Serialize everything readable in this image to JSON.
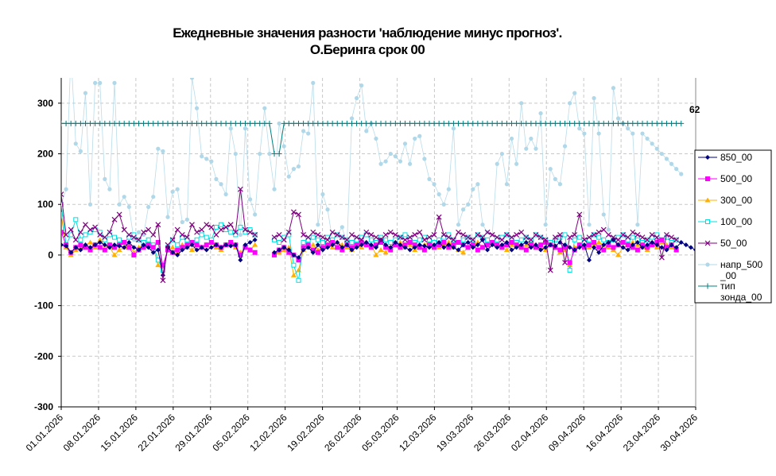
{
  "chart_data": {
    "type": "line",
    "title": "Ежедневные значения разности 'наблюдение минус прогноз'.",
    "subtitle": "О.Беринга     срок 00",
    "ylim": [
      -300,
      350
    ],
    "yticks": [
      -300,
      -200,
      -100,
      0,
      100,
      200,
      300
    ],
    "grid": true,
    "legend_position": "right",
    "x_tick_labels": [
      "01.01.2026",
      "08.01.2026",
      "15.01.2026",
      "22.01.2026",
      "29.01.2026",
      "05.02.2026",
      "12.02.2026",
      "19.02.2026",
      "26.02.2026",
      "05.03.2026",
      "12.03.2026",
      "19.03.2026",
      "26.03.2026",
      "02.04.2026",
      "09.04.2026",
      "16.04.2026",
      "23.04.2026",
      "30.04.2026"
    ],
    "annotation": "62",
    "series": [
      {
        "name": "850_00",
        "color": "#000080",
        "marker": "diamond",
        "values": [
          20,
          18,
          5,
          15,
          10,
          20,
          15,
          20,
          25,
          20,
          15,
          20,
          18,
          15,
          25,
          15,
          10,
          20,
          15,
          5,
          10,
          -40,
          15,
          5,
          0,
          10,
          15,
          20,
          10,
          15,
          10,
          15,
          20,
          15,
          20,
          18,
          20,
          -10,
          20,
          25,
          30,
          null,
          null,
          null,
          5,
          10,
          15,
          10,
          0,
          -5,
          10,
          15,
          5,
          20,
          10,
          15,
          20,
          25,
          15,
          20,
          10,
          15,
          20,
          25,
          20,
          15,
          30,
          20,
          15,
          25,
          20,
          15,
          10,
          15,
          20,
          18,
          15,
          20,
          25,
          15,
          20,
          15,
          10,
          20,
          25,
          15,
          20,
          30,
          10,
          20,
          15,
          20,
          25,
          10,
          15,
          20,
          25,
          15,
          20,
          10,
          15,
          20,
          18,
          25,
          20,
          15,
          10,
          15,
          20,
          -10,
          15,
          5,
          20,
          25,
          30,
          20,
          15,
          10,
          20,
          25,
          15,
          20,
          25,
          20,
          15,
          10,
          20,
          15,
          25,
          20,
          15,
          10
        ]
      },
      {
        "name": "500_00",
        "color": "#ff00ff",
        "marker": "square",
        "values": [
          45,
          20,
          5,
          15,
          20,
          15,
          10,
          20,
          15,
          10,
          20,
          15,
          20,
          25,
          15,
          0,
          10,
          15,
          20,
          15,
          25,
          -20,
          10,
          5,
          10,
          15,
          20,
          25,
          20,
          15,
          20,
          25,
          20,
          15,
          20,
          25,
          20,
          0,
          15,
          10,
          5,
          null,
          null,
          null,
          0,
          10,
          15,
          5,
          0,
          -10,
          15,
          20,
          10,
          5,
          15,
          20,
          25,
          15,
          10,
          20,
          15,
          20,
          25,
          20,
          15,
          20,
          25,
          15,
          10,
          20,
          15,
          20,
          25,
          20,
          15,
          10,
          20,
          15,
          20,
          25,
          15,
          20,
          25,
          20,
          15,
          20,
          10,
          15,
          20,
          25,
          20,
          15,
          20,
          25,
          20,
          15,
          10,
          20,
          15,
          20,
          25,
          20,
          15,
          10,
          15,
          -15,
          10,
          20,
          15,
          20,
          25,
          15,
          10,
          20,
          15,
          20,
          25,
          20,
          15,
          10,
          20,
          15,
          20,
          25,
          30,
          15,
          20,
          10
        ]
      },
      {
        "name": "300_00",
        "color": "#ffb000",
        "marker": "triangle",
        "values": [
          80,
          15,
          0,
          10,
          15,
          20,
          25,
          15,
          30,
          20,
          15,
          0,
          10,
          15,
          20,
          5,
          15,
          20,
          25,
          15,
          -20,
          -30,
          10,
          15,
          5,
          20,
          15,
          10,
          20,
          15,
          20,
          25,
          15,
          10,
          20,
          25,
          15,
          5,
          15,
          10,
          20,
          null,
          null,
          null,
          0,
          5,
          10,
          15,
          -40,
          -30,
          10,
          15,
          20,
          10,
          15,
          20,
          15,
          25,
          20,
          15,
          10,
          20,
          15,
          25,
          20,
          0,
          10,
          5,
          15,
          20,
          25,
          15,
          20,
          10,
          15,
          20,
          25,
          20,
          15,
          20,
          25,
          15,
          10,
          5,
          15,
          20,
          25,
          15,
          20,
          25,
          20,
          15,
          10,
          20,
          25,
          15,
          20,
          25,
          20,
          15,
          10,
          20,
          15,
          5,
          10,
          -20,
          15,
          20,
          25,
          15,
          20,
          25,
          20,
          15,
          10,
          0,
          15,
          20,
          25,
          20,
          15,
          10,
          20,
          15,
          25,
          20,
          15,
          10
        ]
      },
      {
        "name": "100_00",
        "color": "#00e0e0",
        "marker": "square-open",
        "values": [
          100,
          20,
          40,
          70,
          30,
          40,
          45,
          50,
          45,
          30,
          40,
          35,
          30,
          25,
          35,
          40,
          30,
          25,
          30,
          20,
          -10,
          -30,
          15,
          30,
          20,
          35,
          30,
          25,
          30,
          40,
          35,
          30,
          55,
          60,
          50,
          45,
          40,
          55,
          45,
          50,
          40,
          null,
          null,
          null,
          30,
          25,
          35,
          40,
          -20,
          -50,
          25,
          30,
          35,
          30,
          25,
          35,
          30,
          40,
          35,
          30,
          25,
          30,
          35,
          40,
          30,
          25,
          35,
          30,
          25,
          30,
          35,
          40,
          30,
          25,
          30,
          35,
          30,
          25,
          30,
          35,
          40,
          30,
          25,
          30,
          35,
          30,
          40,
          35,
          30,
          25,
          30,
          35,
          40,
          30,
          25,
          30,
          35,
          30,
          40,
          35,
          30,
          25,
          30,
          35,
          40,
          -30,
          30,
          35,
          25,
          30,
          40,
          35,
          30,
          25,
          30,
          35,
          40,
          30,
          35,
          30,
          25,
          30,
          35,
          40,
          30,
          35,
          25,
          30
        ]
      },
      {
        "name": "50_00",
        "color": "#800080",
        "marker": "x",
        "values": [
          120,
          40,
          50,
          30,
          45,
          60,
          50,
          55,
          40,
          35,
          45,
          70,
          80,
          50,
          40,
          35,
          30,
          45,
          50,
          40,
          60,
          -50,
          20,
          30,
          50,
          40,
          35,
          60,
          45,
          50,
          60,
          55,
          40,
          50,
          55,
          60,
          45,
          130,
          50,
          45,
          40,
          null,
          null,
          null,
          35,
          40,
          30,
          45,
          85,
          80,
          40,
          35,
          45,
          40,
          35,
          30,
          45,
          40,
          35,
          30,
          40,
          35,
          30,
          45,
          40,
          35,
          30,
          40,
          45,
          40,
          35,
          30,
          35,
          40,
          45,
          30,
          35,
          40,
          75,
          40,
          35,
          30,
          45,
          40,
          35,
          30,
          40,
          35,
          45,
          40,
          35,
          30,
          40,
          35,
          40,
          45,
          35,
          30,
          40,
          35,
          30,
          -30,
          35,
          40,
          -15,
          35,
          40,
          80,
          30,
          35,
          40,
          45,
          50,
          40,
          35,
          30,
          40,
          35,
          45,
          40,
          35,
          30,
          40,
          35,
          -5,
          40,
          35,
          30
        ]
      },
      {
        "name": "напр_500_00",
        "color": "#b0d8e8",
        "marker": "circle",
        "values": [
          100,
          130,
          400,
          220,
          205,
          320,
          100,
          340,
          340,
          150,
          130,
          340,
          100,
          115,
          95,
          30,
          45,
          40,
          95,
          115,
          210,
          205,
          75,
          125,
          130,
          65,
          70,
          350,
          290,
          195,
          190,
          185,
          150,
          140,
          120,
          250,
          200,
          40,
          250,
          110,
          80,
          200,
          290,
          200,
          130,
          260,
          215,
          155,
          170,
          175,
          245,
          240,
          340,
          60,
          120,
          90,
          30,
          40,
          55,
          20,
          270,
          310,
          335,
          245,
          260,
          230,
          180,
          185,
          200,
          195,
          185,
          220,
          180,
          230,
          235,
          190,
          150,
          140,
          120,
          100,
          130,
          250,
          60,
          90,
          100,
          130,
          140,
          60,
          45,
          40,
          180,
          200,
          140,
          230,
          180,
          300,
          210,
          230,
          210,
          280,
          60,
          170,
          150,
          140,
          215,
          300,
          320,
          250,
          240,
          60,
          310,
          240,
          80,
          50,
          330,
          270,
          260,
          250,
          240,
          60,
          240,
          230,
          220,
          210,
          200,
          190,
          180,
          170,
          160
        ]
      },
      {
        "name": "тип зонда_00",
        "color": "#008080",
        "marker": "plus",
        "values": [
          260,
          260,
          260,
          260,
          260,
          260,
          260,
          260,
          260,
          260,
          260,
          260,
          260,
          260,
          260,
          260,
          260,
          260,
          260,
          260,
          260,
          260,
          260,
          260,
          260,
          260,
          260,
          260,
          260,
          260,
          260,
          260,
          260,
          260,
          260,
          260,
          260,
          260,
          260,
          260,
          260,
          260,
          260,
          260,
          200,
          200,
          260,
          260,
          260,
          260,
          260,
          260,
          260,
          260,
          260,
          260,
          260,
          260,
          260,
          260,
          260,
          260,
          260,
          260,
          260,
          260,
          260,
          260,
          260,
          260,
          260,
          260,
          260,
          260,
          260,
          260,
          260,
          260,
          260,
          260,
          260,
          260,
          260,
          260,
          260,
          260,
          260,
          260,
          260,
          260,
          260,
          260,
          260,
          260,
          260,
          260,
          260,
          260,
          260,
          260,
          260,
          260,
          260,
          260,
          260,
          260,
          260,
          260,
          260,
          260,
          260,
          260,
          260,
          260,
          260,
          260,
          260,
          260,
          260,
          260,
          260,
          260,
          260,
          260,
          260,
          260,
          260,
          260,
          260
        ]
      }
    ],
    "legend": [
      {
        "label_lines": [
          "850_00"
        ],
        "series": 0
      },
      {
        "label_lines": [
          "500_00"
        ],
        "series": 1
      },
      {
        "label_lines": [
          "300_00"
        ],
        "series": 2
      },
      {
        "label_lines": [
          "100_00"
        ],
        "series": 3
      },
      {
        "label_lines": [
          "50_00"
        ],
        "series": 4
      },
      {
        "label_lines": [
          "напр_500",
          "_00"
        ],
        "series": 5
      },
      {
        "label_lines": [
          "тип",
          "зонда_00"
        ],
        "series": 6
      }
    ]
  }
}
